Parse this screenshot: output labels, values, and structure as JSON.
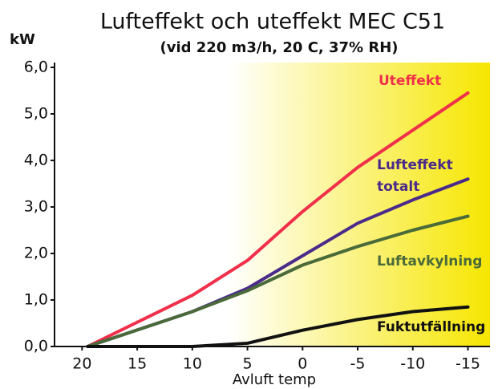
{
  "chart_data": {
    "type": "line",
    "title": "Lufteffekt och uteffekt MEC C51",
    "subtitle": "(vid 220 m3/h, 20 C, 37% RH)",
    "y_label": "kW",
    "x_label": "Avluft temp",
    "x": [
      19.5,
      10,
      5,
      0,
      -5,
      -10,
      -15
    ],
    "series": [
      {
        "name": "Uteffekt",
        "color": "#f0304a",
        "values": [
          0,
          1.1,
          1.85,
          2.9,
          3.85,
          4.65,
          5.45
        ]
      },
      {
        "name": "Lufteffekt totalt",
        "color": "#4a2a8a",
        "values": [
          0,
          0.75,
          1.25,
          1.95,
          2.65,
          3.15,
          3.6
        ]
      },
      {
        "name": "Luftavkylning",
        "color": "#4a6a3a",
        "values": [
          0,
          0.75,
          1.2,
          1.75,
          2.15,
          2.5,
          2.8
        ]
      },
      {
        "name": "Fuktutfällning",
        "color": "#111111",
        "values": [
          0,
          0,
          0.07,
          0.35,
          0.58,
          0.75,
          0.85
        ]
      }
    ],
    "xlim": [
      22.5,
      -17
    ],
    "xticks": [
      20,
      15,
      10,
      5,
      0,
      -5,
      -10,
      -15
    ],
    "ylim": [
      0,
      6
    ],
    "yticks": [
      {
        "value": 0,
        "label": "0,0"
      },
      {
        "value": 1,
        "label": "1,0"
      },
      {
        "value": 2,
        "label": "2,0"
      },
      {
        "value": 3,
        "label": "3,0"
      },
      {
        "value": 4,
        "label": "4,0"
      },
      {
        "value": 5,
        "label": "5,0"
      },
      {
        "value": 6,
        "label": "6,0"
      }
    ],
    "grid": false
  }
}
